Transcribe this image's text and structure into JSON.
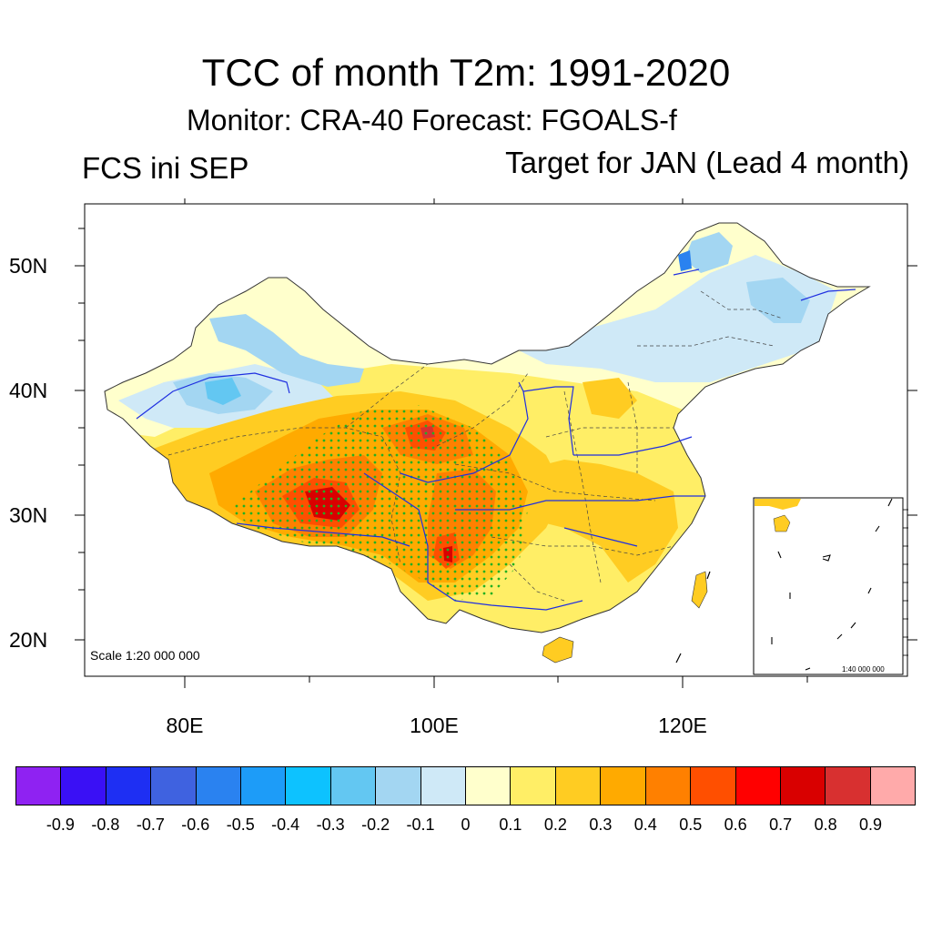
{
  "title": "TCC of month T2m: 1991-2020",
  "subtitle": "Monitor: CRA-40   Forecast: FGOALS-f",
  "left_label": "FCS ini SEP",
  "right_label": "Target for JAN (Lead 4 month)",
  "scale_text": "Scale 1:20 000 000",
  "inset_scale_text": "1:40 000 000",
  "lat_labels": [
    "50N",
    "40N",
    "30N",
    "20N"
  ],
  "lon_labels": [
    "80E",
    "100E",
    "120E"
  ],
  "colorbar": {
    "colors": [
      "#8f22f2",
      "#3a10f5",
      "#1e2ff3",
      "#3f62e0",
      "#2a82f0",
      "#1d9cf8",
      "#0dc2ff",
      "#63c7f2",
      "#a3d6f2",
      "#cfe9f7",
      "#ffffcc",
      "#ffee66",
      "#ffcc22",
      "#ffaa00",
      "#ff8000",
      "#ff4f00",
      "#ff0000",
      "#d90000",
      "#d83030",
      "#ffaaaa"
    ],
    "labels": [
      "-0.9",
      "-0.8",
      "-0.7",
      "-0.6",
      "-0.5",
      "-0.4",
      "-0.3",
      "-0.2",
      "-0.1",
      "0",
      "0.1",
      "0.2",
      "0.3",
      "0.4",
      "0.5",
      "0.6",
      "0.7",
      "0.8",
      "0.9"
    ]
  },
  "colors": {
    "river": "#1f2fe0",
    "boundary": "#333333",
    "stipple": "#22b022"
  }
}
